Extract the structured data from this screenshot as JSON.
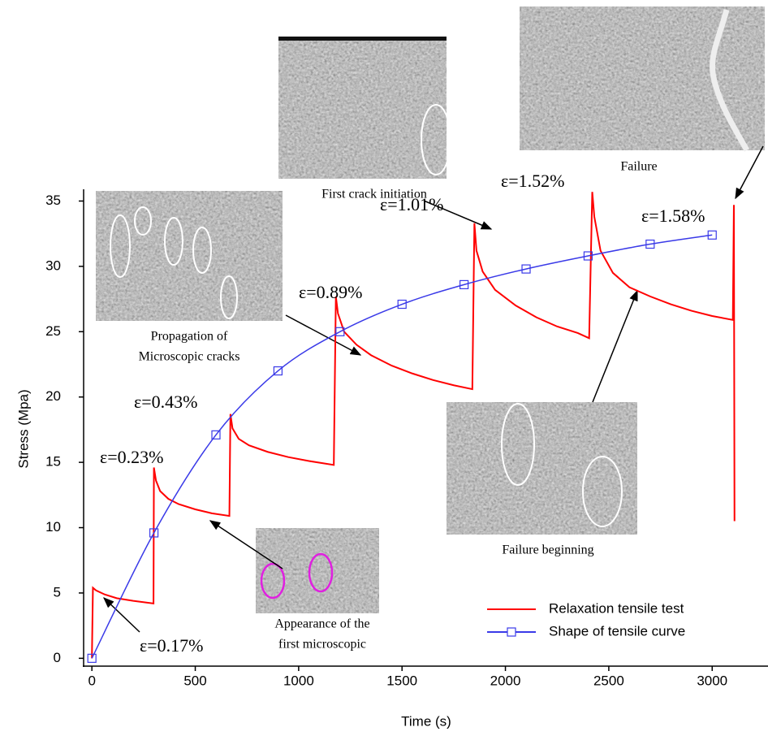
{
  "chart_data": {
    "type": "line",
    "xlabel": "Time (s)",
    "ylabel": "Stress (Mpa)",
    "xlim": [
      -40,
      3270
    ],
    "ylim": [
      -0.6,
      35.9
    ],
    "xticks": [
      0,
      500,
      1000,
      1500,
      2000,
      2500,
      3000
    ],
    "yticks": [
      0,
      5,
      10,
      15,
      20,
      25,
      30,
      35
    ],
    "legend": "lower right",
    "series": [
      {
        "name": "Relaxation tensile test",
        "color": "#ff0000",
        "x": [
          0,
          5,
          20,
          60,
          120,
          200,
          298,
          300,
          310,
          330,
          370,
          420,
          500,
          580,
          665,
          670,
          680,
          710,
          760,
          850,
          950,
          1050,
          1170,
          1180,
          1190,
          1220,
          1280,
          1350,
          1450,
          1550,
          1650,
          1750,
          1840,
          1850,
          1860,
          1890,
          1950,
          2050,
          2150,
          2250,
          2350,
          2405,
          2420,
          2430,
          2460,
          2520,
          2600,
          2700,
          2800,
          2900,
          3000,
          3100,
          3105,
          3108
        ],
        "values": [
          0,
          5.4,
          5.2,
          4.9,
          4.6,
          4.4,
          4.2,
          14.6,
          13.6,
          12.8,
          12.2,
          11.8,
          11.4,
          11.1,
          10.9,
          18.7,
          17.6,
          16.8,
          16.3,
          15.8,
          15.4,
          15.1,
          14.8,
          27.7,
          26.4,
          25,
          24,
          23.2,
          22.4,
          21.8,
          21.3,
          20.9,
          20.6,
          33.3,
          31.2,
          29.6,
          28.2,
          27,
          26.1,
          25.4,
          24.9,
          24.5,
          35.7,
          33.8,
          31.2,
          29.5,
          28.4,
          27.7,
          27.1,
          26.6,
          26.2,
          25.9,
          34.7,
          10.5
        ]
      },
      {
        "name": "Shape of tensile curve",
        "color": "#3a3ae8",
        "marker": "square",
        "x": [
          0,
          300,
          600,
          900,
          1200,
          1500,
          1800,
          2100,
          2400,
          2700,
          3000
        ],
        "values": [
          0,
          9.6,
          17.1,
          22,
          25,
          27.1,
          28.6,
          29.8,
          30.8,
          31.7,
          32.4
        ]
      }
    ],
    "annotations": [
      "ε=0.17%",
      "ε=0.23%",
      "ε=0.43%",
      "ε=0.89%",
      "ε=1.01%",
      "ε=1.52%",
      "ε=1.58%"
    ],
    "captions": [
      [
        "First crack initiation"
      ],
      [
        "Failure"
      ],
      [
        "Propagation of",
        "Microscopic cracks"
      ],
      [
        "Failure beginning"
      ],
      [
        "Appearance of the",
        "first microscopic"
      ]
    ]
  }
}
